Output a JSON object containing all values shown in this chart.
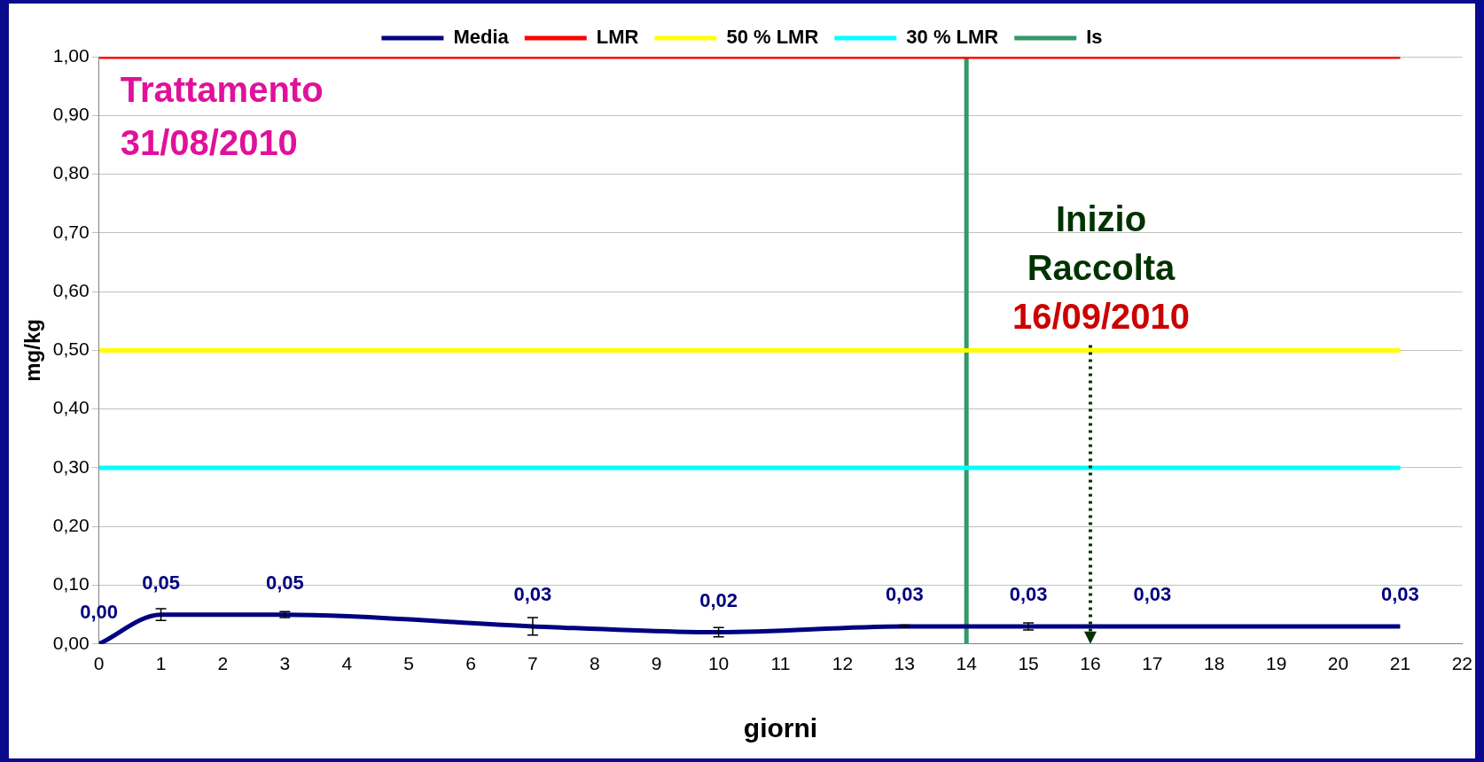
{
  "chart_data": {
    "type": "line",
    "xlabel": "giorni",
    "ylabel": "mg/kg",
    "xlim": [
      0,
      22
    ],
    "xticks": [
      0,
      1,
      2,
      3,
      4,
      5,
      6,
      7,
      8,
      9,
      10,
      11,
      12,
      13,
      14,
      15,
      16,
      17,
      18,
      19,
      20,
      21,
      22
    ],
    "ylim": [
      0,
      1
    ],
    "yticks": [
      {
        "value": 0,
        "label": "0,00"
      },
      {
        "value": 0.1,
        "label": "0,10"
      },
      {
        "value": 0.2,
        "label": "0,20"
      },
      {
        "value": 0.3,
        "label": "0,30"
      },
      {
        "value": 0.4,
        "label": "0,40"
      },
      {
        "value": 0.5,
        "label": "0,50"
      },
      {
        "value": 0.6,
        "label": "0,60"
      },
      {
        "value": 0.7,
        "label": "0,70"
      },
      {
        "value": 0.8,
        "label": "0,80"
      },
      {
        "value": 0.9,
        "label": "0,90"
      },
      {
        "value": 1,
        "label": "1,00"
      }
    ],
    "grid": "y",
    "legend": "top",
    "marker": "none",
    "line_style": "solid",
    "series": [
      {
        "name": "Media",
        "type": "line",
        "color": "#000080",
        "x": [
          0,
          1,
          3,
          7,
          10,
          13,
          15,
          17,
          21
        ],
        "values": [
          0,
          0.05,
          0.05,
          0.03,
          0.02,
          0.03,
          0.03,
          0.03,
          0.03
        ],
        "value_labels": [
          "0,00",
          "0,05",
          "0,05",
          "0,03",
          "0,02",
          "0,03",
          "0,03",
          "0,03",
          "0,03"
        ],
        "errors": [
          null,
          0.01,
          0.005,
          0.015,
          0.008,
          0.002,
          0.006,
          null,
          null
        ]
      },
      {
        "name": "LMR",
        "type": "line",
        "color": "#ff0000",
        "x": [
          0,
          21
        ],
        "values": [
          1,
          1
        ]
      },
      {
        "name": "50 % LMR",
        "type": "line",
        "color": "#ffff00",
        "x": [
          0,
          21
        ],
        "values": [
          0.5,
          0.5
        ]
      },
      {
        "name": "30 % LMR",
        "type": "line",
        "color": "#00ffff",
        "x": [
          0,
          21
        ],
        "values": [
          0.3,
          0.3
        ]
      },
      {
        "name": "Is",
        "type": "line",
        "color": "#339966",
        "x": [
          14,
          14
        ],
        "values": [
          0,
          1
        ]
      }
    ],
    "annotations": [
      "Trattamento 31/08/2010",
      "Inizio Raccolta 16/09/2010"
    ]
  }
}
